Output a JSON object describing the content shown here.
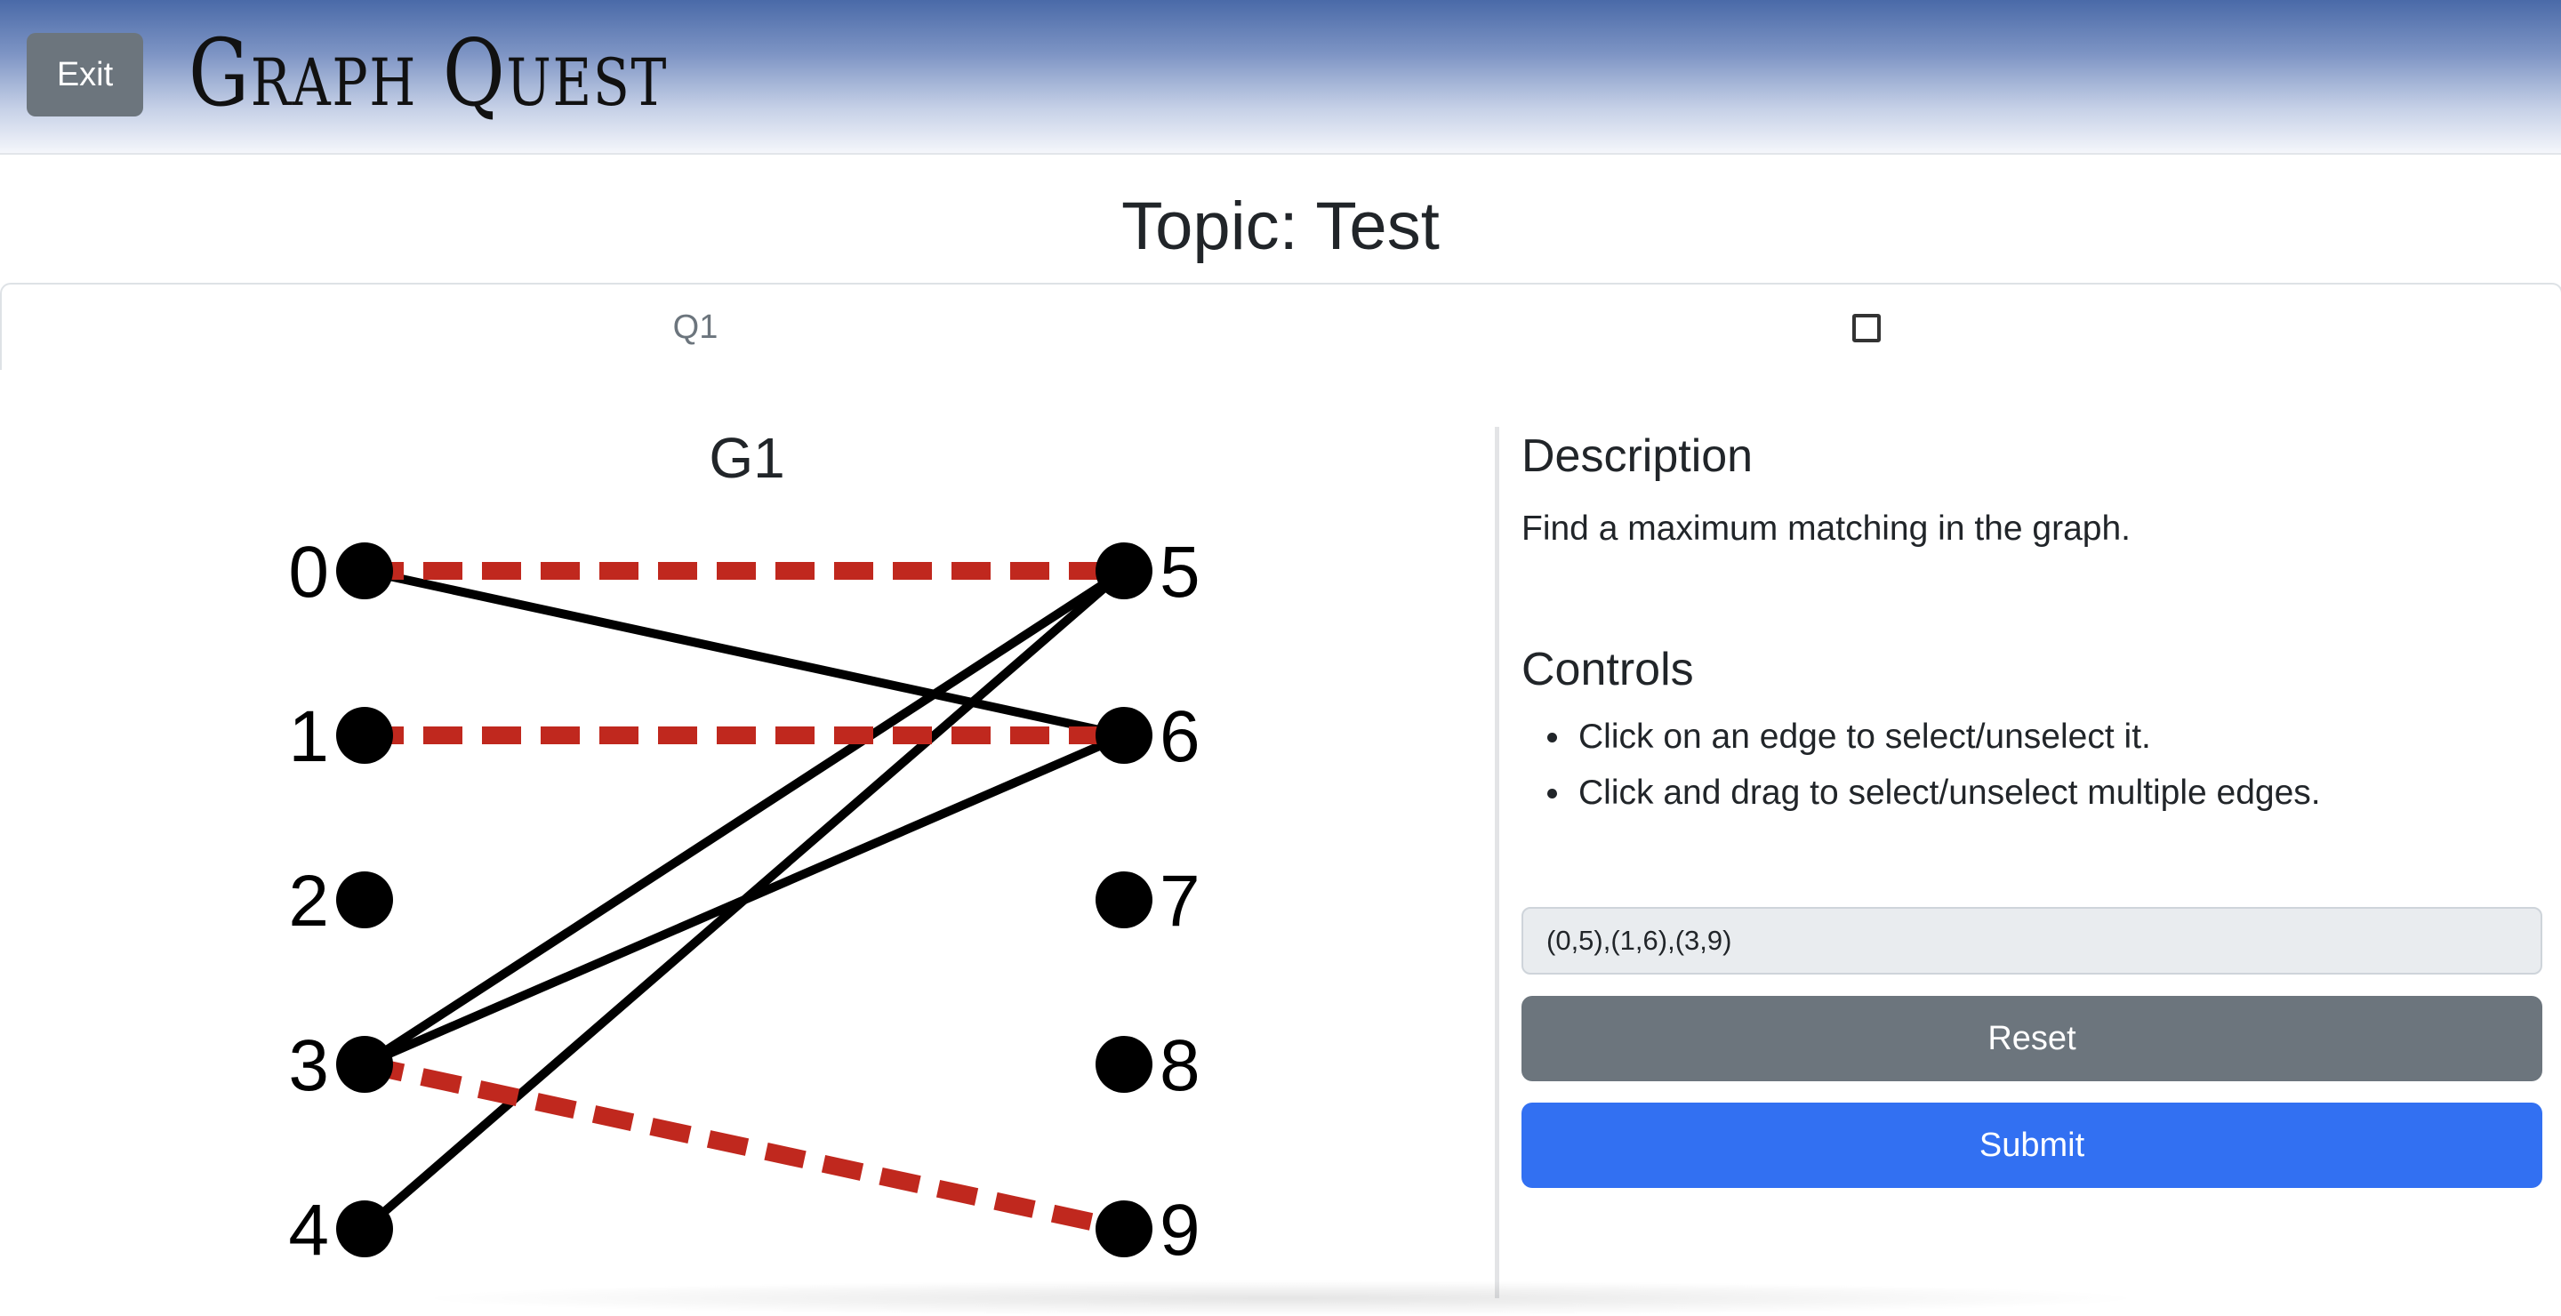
{
  "header": {
    "exit_label": "Exit",
    "logo_text": "Graph Quest"
  },
  "topic_title": "Topic: Test",
  "tabs": [
    {
      "label": "Q1"
    },
    {
      "label": "",
      "checked": false
    }
  ],
  "graph": {
    "title": "G1",
    "left_nodes": [
      "0",
      "1",
      "2",
      "3",
      "4"
    ],
    "right_nodes": [
      "5",
      "6",
      "7",
      "8",
      "9"
    ],
    "edges": [
      {
        "from": "0",
        "to": "5",
        "selected": true
      },
      {
        "from": "0",
        "to": "6",
        "selected": false
      },
      {
        "from": "1",
        "to": "6",
        "selected": true
      },
      {
        "from": "3",
        "to": "5",
        "selected": false
      },
      {
        "from": "3",
        "to": "6",
        "selected": false
      },
      {
        "from": "3",
        "to": "9",
        "selected": true
      },
      {
        "from": "4",
        "to": "5",
        "selected": false
      }
    ],
    "selected_color": "#c0281e",
    "edge_color": "#000000"
  },
  "panel": {
    "description_heading": "Description",
    "description_text": "Find a maximum matching in the graph.",
    "controls_heading": "Controls",
    "controls": [
      "Click on an edge to select/unselect it.",
      "Click and drag to select/unselect multiple edges."
    ],
    "answer_value": "(0,5),(1,6),(3,9)",
    "reset_label": "Reset",
    "submit_label": "Submit"
  },
  "colors": {
    "reset": "#6c757d",
    "submit": "#3270f2",
    "header_top": "#4a6aa8"
  }
}
